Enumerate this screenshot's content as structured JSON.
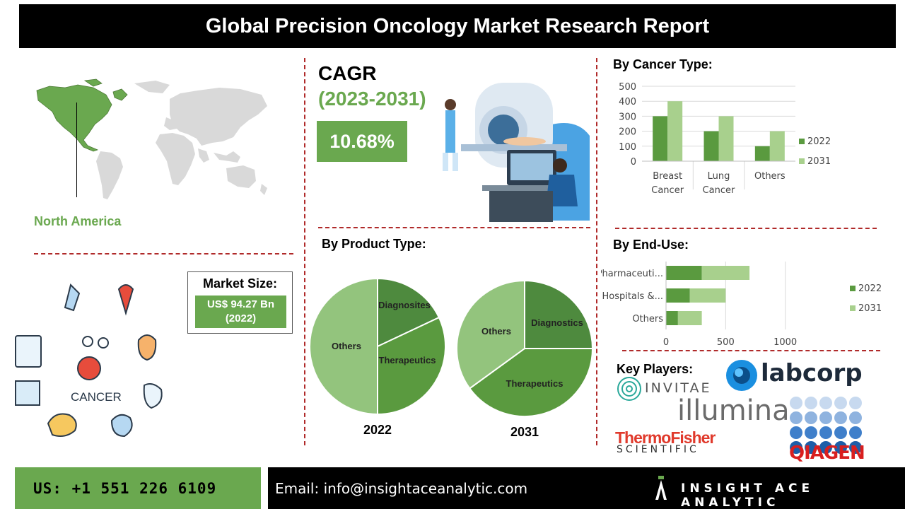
{
  "title": "Global Precision Oncology Market Research Report",
  "region": {
    "label": "North America"
  },
  "cagr": {
    "heading": "CAGR",
    "period": "(2023-2031)",
    "value": "10.68%"
  },
  "market_size": {
    "label": "Market Size:",
    "value_line1": "US$ 94.27 Bn",
    "value_line2": "(2022)"
  },
  "cancer_icon_label": "CANCER",
  "sections": {
    "cancer_type": "By Cancer Type:",
    "product_type": "By Product Type:",
    "end_use": "By End-Use:",
    "key_players": "Key Players:"
  },
  "colors": {
    "accent_green": "#6aa84f",
    "dark_green": "#4e8a3e",
    "light_green": "#93c47d",
    "series_2022": "#5a9a3f",
    "series_2031": "#a8d08d",
    "divider_red": "#b02a2a"
  },
  "chart_data": [
    {
      "id": "cancer_type",
      "type": "bar",
      "categories": [
        "Breast Cancer",
        "Lung Cancer",
        "Others"
      ],
      "category_lines": [
        [
          "Breast",
          "Cancer"
        ],
        [
          "Lung",
          "Cancer"
        ],
        [
          "Others"
        ]
      ],
      "series": [
        {
          "name": "2022",
          "values": [
            300,
            200,
            100
          ]
        },
        {
          "name": "2031",
          "values": [
            400,
            300,
            200
          ]
        }
      ],
      "ylim": [
        0,
        500
      ],
      "yticks": [
        "0",
        "100",
        "200",
        "300",
        "400",
        "500"
      ],
      "legend": "right"
    },
    {
      "id": "end_use",
      "type": "bar",
      "orientation": "horizontal",
      "stacked": true,
      "categories": [
        "Pharmaceuti...",
        "Hospitals &...",
        "Others"
      ],
      "series": [
        {
          "name": "2022",
          "values": [
            300,
            200,
            100
          ]
        },
        {
          "name": "2031",
          "values": [
            400,
            300,
            200
          ]
        }
      ],
      "xlim": [
        0,
        1500
      ],
      "xticks": [
        "0",
        "500",
        "1000"
      ],
      "legend": "right"
    },
    {
      "id": "product_2022",
      "type": "pie",
      "caption": "2022",
      "slices": [
        {
          "label": "Diagnosites",
          "value": 18
        },
        {
          "label": "Therapeutics",
          "value": 32
        },
        {
          "label": "Others",
          "value": 50
        }
      ]
    },
    {
      "id": "product_2031",
      "type": "pie",
      "caption": "2031",
      "slices": [
        {
          "label": "Diagnostics",
          "value": 25
        },
        {
          "label": "Therapeutics",
          "value": 40
        },
        {
          "label": "Others",
          "value": 35
        }
      ]
    }
  ],
  "key_players": [
    "INVITAE",
    "labcorp",
    "illumina",
    "ThermoFisher",
    "SCIENTIFIC",
    "QIAGEN"
  ],
  "footer": {
    "phone": "US: +1 551 226 6109",
    "email": "Email: info@insightaceanalytic.com",
    "brand": "INSIGHT ACE ANALYTIC"
  }
}
